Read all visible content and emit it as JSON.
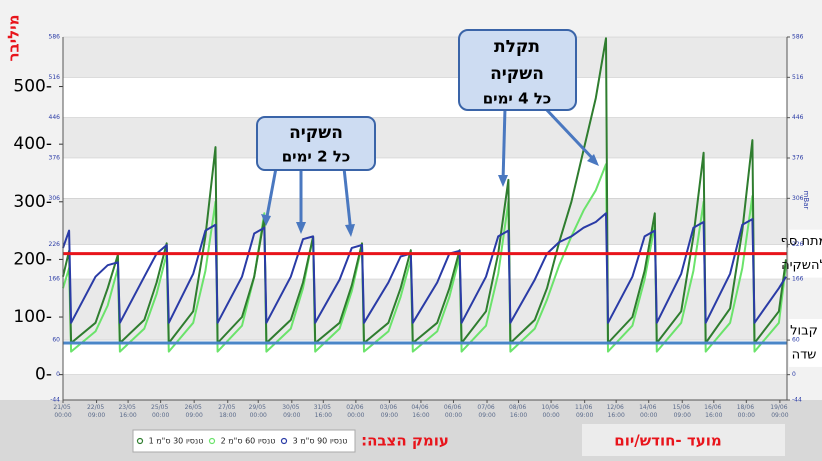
{
  "chart_data": {
    "type": "line",
    "ylabel": "מיליבר",
    "y2label": "mBar",
    "xlabel": "מועד -חודש/יום",
    "legend_title": "עומק הצבה:",
    "ylim": [
      -44,
      586
    ],
    "y2lim": [
      -44,
      586
    ],
    "yticks": [
      -44,
      0,
      60,
      166,
      226,
      306,
      376,
      446,
      516,
      586
    ],
    "y2ticks": [
      -44,
      0,
      60,
      166,
      226,
      306,
      376,
      446,
      516,
      586
    ],
    "yticks_major": [
      {
        "value": 500,
        "label": "500-"
      },
      {
        "value": 400,
        "label": "400-"
      },
      {
        "value": 300,
        "label": "300-"
      },
      {
        "value": 200,
        "label": "200-"
      },
      {
        "value": 100,
        "label": "100-"
      },
      {
        "value": 0,
        "label": "0-"
      }
    ],
    "xlim": [
      "21/05 00:00",
      "19/06 16:00"
    ],
    "xticks": [
      "21/05 00:00",
      "22/05 09:00",
      "23/05 16:00",
      "25/05 00:00",
      "26/05 09:00",
      "27/05 18:00",
      "29/05 00:00",
      "30/05 09:00",
      "31/05 16:00",
      "02/06 00:00",
      "03/06 09:00",
      "04/06 16:00",
      "06/06 00:00",
      "07/06 09:00",
      "08/06 16:00",
      "10/06 00:00",
      "11/06 09:00",
      "12/06 16:00",
      "14/06 00:00",
      "15/06 09:00",
      "16/06 16:00",
      "18/06 00:00",
      "19/06 09:00"
    ],
    "x": [
      "21/05 00:00",
      "21/05 06:00",
      "21/05 08:00",
      "22/05 08:00",
      "22/05 20:00",
      "23/05 06:00",
      "23/05 08:00",
      "24/05 08:00",
      "24/05 20:00",
      "25/05 06:00",
      "25/05 08:00",
      "26/05 08:00",
      "26/05 20:00",
      "27/05 06:00",
      "27/05 08:00",
      "28/05 08:00",
      "28/05 20:00",
      "29/05 06:00",
      "29/05 08:00",
      "30/05 08:00",
      "30/05 20:00",
      "31/05 06:00",
      "31/05 08:00",
      "01/06 08:00",
      "01/06 20:00",
      "02/06 06:00",
      "02/06 08:00",
      "03/06 08:00",
      "03/06 20:00",
      "04/06 06:00",
      "04/06 08:00",
      "05/06 08:00",
      "05/06 20:00",
      "06/06 06:00",
      "06/06 08:00",
      "07/06 08:00",
      "07/06 20:00",
      "08/06 06:00",
      "08/06 08:00",
      "09/06 08:00",
      "09/06 20:00",
      "10/06 08:00",
      "10/06 20:00",
      "11/06 08:00",
      "11/06 20:00",
      "12/06 06:00",
      "12/06 08:00",
      "13/06 08:00",
      "13/06 20:00",
      "14/06 06:00",
      "14/06 08:00",
      "15/06 08:00",
      "15/06 20:00",
      "16/06 06:00",
      "16/06 08:00",
      "17/06 08:00",
      "17/06 20:00",
      "18/06 06:00",
      "18/06 08:00",
      "19/06 08:00",
      "19/06 15:00"
    ],
    "series": [
      {
        "name": "טנסיו 30 ס\"מ 1",
        "color": "#2f7d2f",
        "values": [
          170,
          215,
          55,
          90,
          150,
          208,
          55,
          95,
          160,
          228,
          55,
          110,
          240,
          395,
          55,
          100,
          170,
          272,
          55,
          95,
          160,
          239,
          55,
          90,
          155,
          228,
          55,
          90,
          150,
          216,
          55,
          90,
          150,
          216,
          55,
          110,
          210,
          338,
          55,
          95,
          150,
          230,
          300,
          390,
          480,
          584,
          55,
          100,
          180,
          280,
          55,
          110,
          240,
          385,
          55,
          115,
          250,
          407,
          55,
          110,
          200
        ]
      },
      {
        "name": "טנסיו 60 ס\"מ 2",
        "color": "#6be36b",
        "values": [
          150,
          185,
          40,
          75,
          120,
          185,
          40,
          80,
          140,
          210,
          40,
          90,
          180,
          300,
          40,
          85,
          170,
          280,
          40,
          80,
          150,
          240,
          40,
          80,
          145,
          225,
          40,
          75,
          135,
          200,
          40,
          75,
          135,
          205,
          40,
          85,
          175,
          300,
          40,
          80,
          130,
          190,
          240,
          285,
          320,
          365,
          40,
          85,
          165,
          260,
          40,
          90,
          180,
          300,
          40,
          90,
          185,
          310,
          40,
          90,
          190
        ]
      },
      {
        "name": "טנסיו 90 ס\"מ 3",
        "color": "#2a3ba6",
        "values": [
          220,
          250,
          90,
          170,
          190,
          195,
          90,
          170,
          210,
          225,
          90,
          175,
          250,
          260,
          90,
          170,
          245,
          255,
          90,
          170,
          235,
          240,
          90,
          165,
          220,
          225,
          90,
          160,
          205,
          210,
          90,
          160,
          210,
          215,
          90,
          170,
          240,
          250,
          90,
          165,
          210,
          230,
          240,
          255,
          265,
          280,
          90,
          170,
          240,
          250,
          90,
          175,
          255,
          265,
          90,
          175,
          260,
          270,
          90,
          150,
          170
        ]
      }
    ],
    "hlines": [
      {
        "value": 210,
        "color": "#e8141b",
        "label": [
          "מתח סף",
          "להשקיה"
        ]
      },
      {
        "value": 55,
        "color": "#4a86c8",
        "label": [
          "קבול",
          "שדה"
        ]
      }
    ],
    "annotations": [
      {
        "lines": [
          "השקיה",
          "כל 2 ימים"
        ]
      },
      {
        "lines": [
          "תקלת",
          "השקיה",
          "כל 4 ימים"
        ]
      }
    ]
  }
}
